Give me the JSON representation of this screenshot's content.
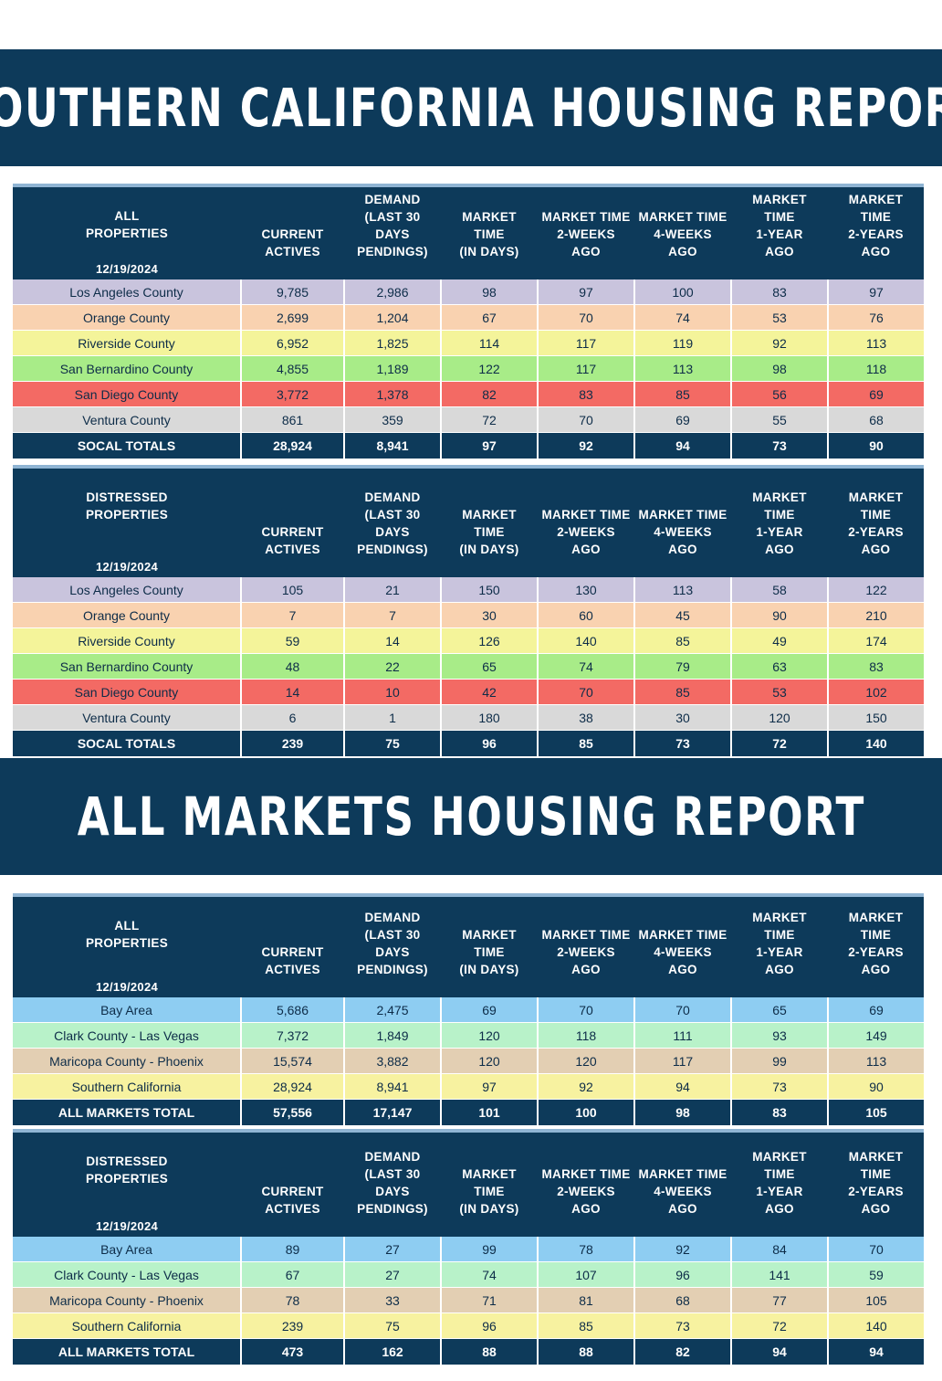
{
  "banners": {
    "socal": "SOUTHERN CALIFORNIA HOUSING REPORT",
    "all_markets": "ALL MARKETS HOUSING REPORT"
  },
  "colors": {
    "header_bg": "#0d3a5a",
    "los_angeles": "#c9c4dd",
    "orange": "#f9d2b0",
    "riverside": "#f4f49a",
    "san_bernardino": "#a8ec88",
    "san_diego": "#f36a64",
    "ventura": "#d9d9d9",
    "bay_area": "#8ecdf2",
    "clark": "#b8f2c9",
    "maricopa": "#e3cfb3",
    "southern_california": "#f7f2a0"
  },
  "columns": {
    "current": "CURRENT\nACTIVES",
    "demand": "DEMAND\n(LAST 30\nDAYS\nPENDINGS)",
    "market_time": "MARKET\nTIME\n(IN DAYS)",
    "two_weeks": "MARKET TIME\n2-WEEKS\nAGO",
    "four_weeks": "MARKET TIME\n4-WEEKS\nAGO",
    "one_year": "MARKET\nTIME\n1-YEAR\nAGO",
    "two_years": "MARKET\nTIME\n2-YEARS\nAGO"
  },
  "tables": [
    {
      "title": "ALL\nPROPERTIES",
      "date": "12/19/2024",
      "rows": [
        {
          "name": "Los Angeles County",
          "color": "#c9c4dd",
          "values": [
            "9,785",
            "2,986",
            "98",
            "97",
            "100",
            "83",
            "97"
          ]
        },
        {
          "name": "Orange County",
          "color": "#f9d2b0",
          "values": [
            "2,699",
            "1,204",
            "67",
            "70",
            "74",
            "53",
            "76"
          ]
        },
        {
          "name": "Riverside County",
          "color": "#f4f49a",
          "values": [
            "6,952",
            "1,825",
            "114",
            "117",
            "119",
            "92",
            "113"
          ]
        },
        {
          "name": "San Bernardino County",
          "color": "#a8ec88",
          "values": [
            "4,855",
            "1,189",
            "122",
            "117",
            "113",
            "98",
            "118"
          ]
        },
        {
          "name": "San Diego County",
          "color": "#f36a64",
          "values": [
            "3,772",
            "1,378",
            "82",
            "83",
            "85",
            "56",
            "69"
          ]
        },
        {
          "name": "Ventura County",
          "color": "#d9d9d9",
          "values": [
            "861",
            "359",
            "72",
            "70",
            "69",
            "55",
            "68"
          ]
        }
      ],
      "total": {
        "name": "SOCAL TOTALS",
        "values": [
          "28,924",
          "8,941",
          "97",
          "92",
          "94",
          "73",
          "90"
        ]
      }
    },
    {
      "title": "DISTRESSED\nPROPERTIES",
      "date": "12/19/2024",
      "rows": [
        {
          "name": "Los Angeles County",
          "color": "#c9c4dd",
          "values": [
            "105",
            "21",
            "150",
            "130",
            "113",
            "58",
            "122"
          ]
        },
        {
          "name": "Orange County",
          "color": "#f9d2b0",
          "values": [
            "7",
            "7",
            "30",
            "60",
            "45",
            "90",
            "210"
          ]
        },
        {
          "name": "Riverside County",
          "color": "#f4f49a",
          "values": [
            "59",
            "14",
            "126",
            "140",
            "85",
            "49",
            "174"
          ]
        },
        {
          "name": "San Bernardino County",
          "color": "#a8ec88",
          "values": [
            "48",
            "22",
            "65",
            "74",
            "79",
            "63",
            "83"
          ]
        },
        {
          "name": "San Diego County",
          "color": "#f36a64",
          "values": [
            "14",
            "10",
            "42",
            "70",
            "85",
            "53",
            "102"
          ]
        },
        {
          "name": "Ventura County",
          "color": "#d9d9d9",
          "values": [
            "6",
            "1",
            "180",
            "38",
            "30",
            "120",
            "150"
          ]
        }
      ],
      "total": {
        "name": "SOCAL TOTALS",
        "values": [
          "239",
          "75",
          "96",
          "85",
          "73",
          "72",
          "140"
        ]
      }
    },
    {
      "title": "ALL\nPROPERTIES",
      "date": "12/19/2024",
      "rows": [
        {
          "name": "Bay Area",
          "color": "#8ecdf2",
          "values": [
            "5,686",
            "2,475",
            "69",
            "70",
            "70",
            "65",
            "69"
          ]
        },
        {
          "name": "Clark County - Las Vegas",
          "color": "#b8f2c9",
          "values": [
            "7,372",
            "1,849",
            "120",
            "118",
            "111",
            "93",
            "149"
          ]
        },
        {
          "name": "Maricopa County - Phoenix",
          "color": "#e3cfb3",
          "values": [
            "15,574",
            "3,882",
            "120",
            "120",
            "117",
            "99",
            "113"
          ]
        },
        {
          "name": "Southern California",
          "color": "#f7f2a0",
          "values": [
            "28,924",
            "8,941",
            "97",
            "92",
            "94",
            "73",
            "90"
          ]
        }
      ],
      "total": {
        "name": "ALL MARKETS TOTAL",
        "values": [
          "57,556",
          "17,147",
          "101",
          "100",
          "98",
          "83",
          "105"
        ]
      }
    },
    {
      "title": "DISTRESSED\nPROPERTIES",
      "date": "12/19/2024",
      "rows": [
        {
          "name": "Bay Area",
          "color": "#8ecdf2",
          "values": [
            "89",
            "27",
            "99",
            "78",
            "92",
            "84",
            "70"
          ]
        },
        {
          "name": "Clark County - Las Vegas",
          "color": "#b8f2c9",
          "values": [
            "67",
            "27",
            "74",
            "107",
            "96",
            "141",
            "59"
          ]
        },
        {
          "name": "Maricopa County - Phoenix",
          "color": "#e3cfb3",
          "values": [
            "78",
            "33",
            "71",
            "81",
            "68",
            "77",
            "105"
          ]
        },
        {
          "name": "Southern California",
          "color": "#f7f2a0",
          "values": [
            "239",
            "75",
            "96",
            "85",
            "73",
            "72",
            "140"
          ]
        }
      ],
      "total": {
        "name": "ALL MARKETS TOTAL",
        "values": [
          "473",
          "162",
          "88",
          "88",
          "82",
          "94",
          "94"
        ]
      }
    }
  ]
}
